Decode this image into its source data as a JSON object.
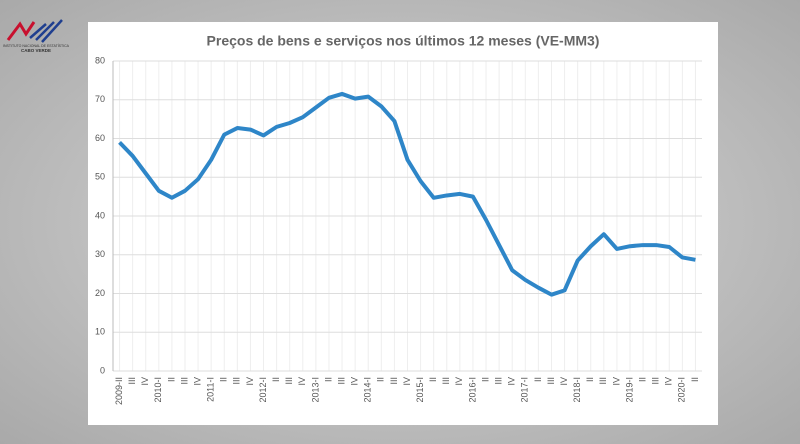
{
  "logo": {
    "line1": "INSTITUTO NACIONAL DE ESTATÍSTICA",
    "line2": "CABO VERDE"
  },
  "chart_data": {
    "type": "line",
    "title": "Preços de bens e serviços nos últimos 12 meses (VE-MM3)",
    "categories": [
      "2009-II",
      "III",
      "IV",
      "2010-I",
      "II",
      "III",
      "IV",
      "2011-I",
      "II",
      "III",
      "IV",
      "2012-I",
      "II",
      "III",
      "IV",
      "2013-I",
      "II",
      "III",
      "IV",
      "2014-I",
      "II",
      "III",
      "IV",
      "2015-I",
      "II",
      "III",
      "IV",
      "2016-I",
      "II",
      "III",
      "IV",
      "2017-I",
      "II",
      "III",
      "IV",
      "2018-I",
      "II",
      "III",
      "IV",
      "2019-I",
      "II",
      "III",
      "IV",
      "2020-I",
      "II"
    ],
    "series": [
      {
        "name": "VE-MM3",
        "color": "#2e86c8",
        "values": [
          59,
          55.5,
          51,
          46.5,
          44.7,
          46.5,
          49.5,
          54.5,
          61,
          62.7,
          62.3,
          60.8,
          63,
          64,
          65.5,
          68,
          70.5,
          71.5,
          70.3,
          70.8,
          68.3,
          64.5,
          54.5,
          49,
          44.7,
          45.3,
          45.7,
          45,
          39,
          32.5,
          26,
          23.5,
          21.5,
          19.7,
          20.8,
          28.5,
          32.2,
          35.3,
          31.5,
          32.2,
          32.5,
          32.5,
          32,
          29.3,
          28.7
        ]
      }
    ],
    "ylim": [
      0,
      80
    ],
    "yticks": [
      0,
      10,
      20,
      30,
      40,
      50,
      60,
      70,
      80
    ],
    "grid": true
  }
}
